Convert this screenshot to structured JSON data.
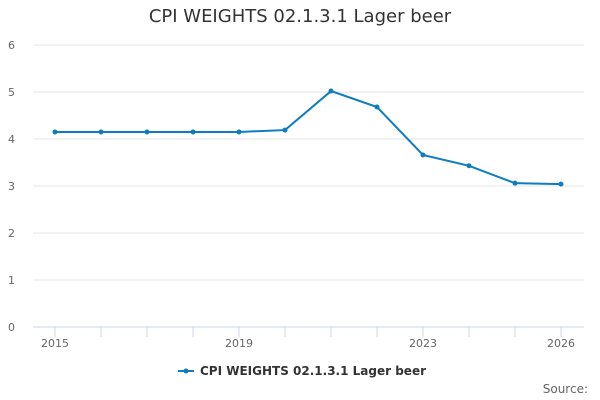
{
  "chart_data": {
    "type": "line",
    "title": "CPI WEIGHTS 02.1.3.1 Lager beer",
    "xlabel": "",
    "ylabel": "",
    "x": [
      2015,
      2016,
      2017,
      2018,
      2019,
      2020,
      2021,
      2022,
      2023,
      2024,
      2025,
      2026
    ],
    "series": [
      {
        "name": "CPI WEIGHTS 02.1.3.1 Lager beer",
        "color": "#0f7cbf",
        "values": [
          4.15,
          4.15,
          4.15,
          4.15,
          4.15,
          4.19,
          5.02,
          4.68,
          3.66,
          3.43,
          3.06,
          3.04
        ]
      }
    ],
    "ylim": [
      0,
      6
    ],
    "yticks": [
      0,
      1,
      2,
      3,
      4,
      5,
      6
    ],
    "xtick_labels": [
      "2015",
      "2019",
      "2023",
      "2026"
    ],
    "grid": true,
    "legend_position": "bottom"
  },
  "title": "CPI WEIGHTS 02.1.3.1 Lager beer",
  "legend": {
    "label": "CPI WEIGHTS 02.1.3.1 Lager beer"
  },
  "source": "Source:"
}
